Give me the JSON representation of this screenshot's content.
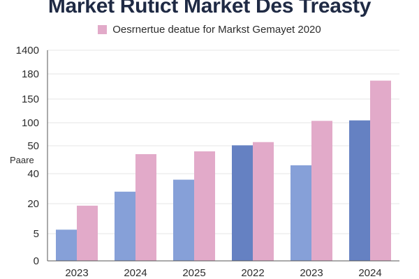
{
  "chart_data": {
    "type": "bar",
    "title": "Market Rutict Market Des Treasty",
    "legend": [
      "Oesrnertue deatue for Markst Gemayet 2020"
    ],
    "legend_placement": "top-center",
    "ylabel": "Paare",
    "xlabel": "",
    "categories": [
      "2023",
      "2024",
      "2025",
      "2022",
      "2023",
      "2024"
    ],
    "y_tick_labels": [
      "0",
      "5",
      "20",
      "40",
      "50",
      "100",
      "150",
      "180",
      "1400"
    ],
    "grid": true,
    "series": [
      {
        "values": [
          7,
          28,
          36,
          51,
          43,
          105
        ]
      },
      {
        "values": [
          19,
          47,
          48,
          58,
          104,
          172
        ]
      }
    ],
    "colors": {
      "series_a": [
        "#86a0d8",
        "#86a0d8",
        "#86a0d8",
        "#6581c2",
        "#86a0d8",
        "#6581c2"
      ],
      "series_b": "#e2aac9",
      "grid": "#e6e6e6",
      "axis": "#555555",
      "title": "#1f2a44"
    }
  }
}
